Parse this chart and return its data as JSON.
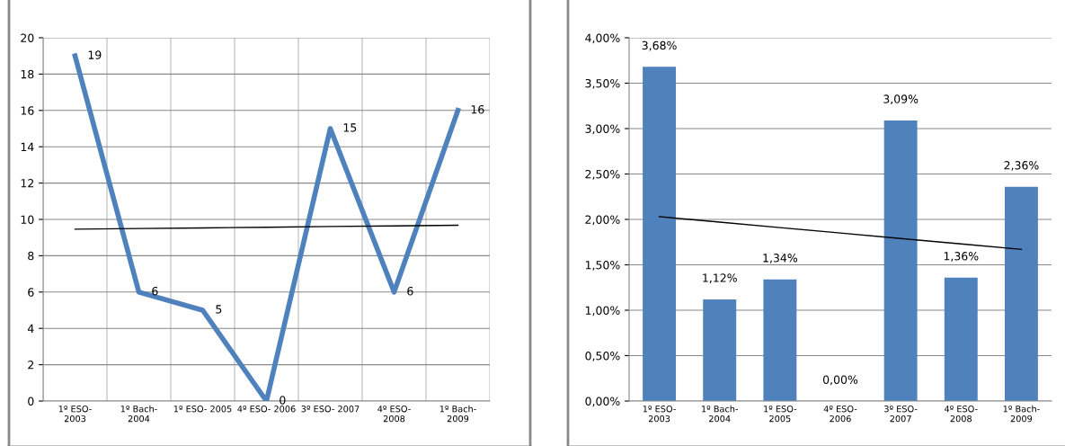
{
  "chart_data": [
    {
      "type": "line",
      "categories": [
        "1º ESO-\n2003",
        "1º Bach-\n2004",
        "1º ESO- 2005",
        "4º ESO- 2006",
        "3º ESO- 2007",
        "4º ESO-\n2008",
        "1º Bach-\n2009"
      ],
      "series": [
        {
          "color": "#4f81bd",
          "values": [
            19,
            6,
            5,
            0,
            15,
            6,
            16
          ],
          "value_labels": [
            "19",
            "6",
            "5",
            "0",
            "15",
            "6",
            "16"
          ]
        },
        {
          "type": "line",
          "color": "#000000",
          "values": [
            9.46,
            9.5,
            9.53,
            9.57,
            9.61,
            9.64,
            9.68
          ]
        }
      ],
      "ylim": [
        0,
        20
      ],
      "yticks": [
        0,
        2,
        4,
        6,
        8,
        10,
        12,
        14,
        16,
        18,
        20
      ],
      "grid": true,
      "marker": "none",
      "line_style": "solid"
    },
    {
      "type": "bar",
      "categories": [
        "1º ESO-\n2003",
        "1º Bach-\n2004",
        "1º ESO-\n2005",
        "4º ESO-\n2006",
        "3º ESO-\n2007",
        "4º ESO-\n2008",
        "1º Bach-\n2009"
      ],
      "series": [
        {
          "color": "#4f81bd",
          "values": [
            3.68,
            1.12,
            1.34,
            0,
            3.09,
            1.36,
            2.36
          ],
          "value_labels": [
            "3,68%",
            "1,12%",
            "1,34%",
            "0,00%",
            "3,09%",
            "1,36%",
            "2,36%"
          ]
        },
        {
          "type": "line",
          "color": "#000000",
          "values": [
            2.03,
            1.97,
            1.91,
            1.85,
            1.79,
            1.73,
            1.67
          ]
        }
      ],
      "ylim": [
        0,
        4
      ],
      "yticks": [
        {
          "value": 0,
          "label": "0,00%"
        },
        {
          "value": 0.5,
          "label": "0,50%"
        },
        {
          "value": 1,
          "label": "1,00%"
        },
        {
          "value": 1.5,
          "label": "1,50%"
        },
        {
          "value": 2,
          "label": "2,00%"
        },
        {
          "value": 2.5,
          "label": "2,50%"
        },
        {
          "value": 3,
          "label": "3,00%"
        },
        {
          "value": 3.5,
          "label": "3,50%"
        },
        {
          "value": 4,
          "label": "4,00%"
        }
      ],
      "grid": "y"
    }
  ]
}
